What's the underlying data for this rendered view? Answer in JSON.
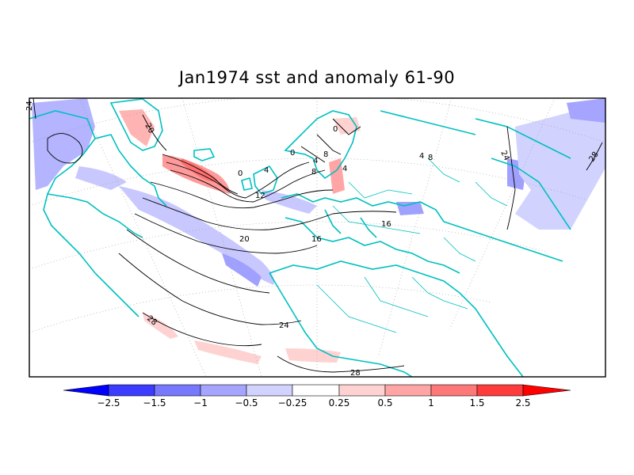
{
  "title": "Jan1974 sst and anomaly 61-90",
  "colorbar": {
    "labels": [
      "−2.5",
      "−1.5",
      "−1",
      "−0.5",
      "−0.25",
      "0.25",
      "0.5",
      "1",
      "1.5",
      "2.5"
    ],
    "colors": [
      "#0000ff",
      "#3c3cff",
      "#7878ff",
      "#a5a5ff",
      "#d2d2ff",
      "#ffffff",
      "#ffd2d2",
      "#ffa5a5",
      "#ff7878",
      "#ff3c3c",
      "#ff0000"
    ]
  },
  "contour_labels": [
    "24",
    "20",
    "0",
    "4",
    "8",
    "12",
    "16",
    "20",
    "24",
    "28",
    "0",
    "0",
    "4",
    "8",
    "4",
    "16",
    "4",
    "8",
    "24",
    "28",
    "28"
  ],
  "colors": {
    "coast": "#00c0c0",
    "contour": "#000000",
    "frame": "#000000"
  }
}
